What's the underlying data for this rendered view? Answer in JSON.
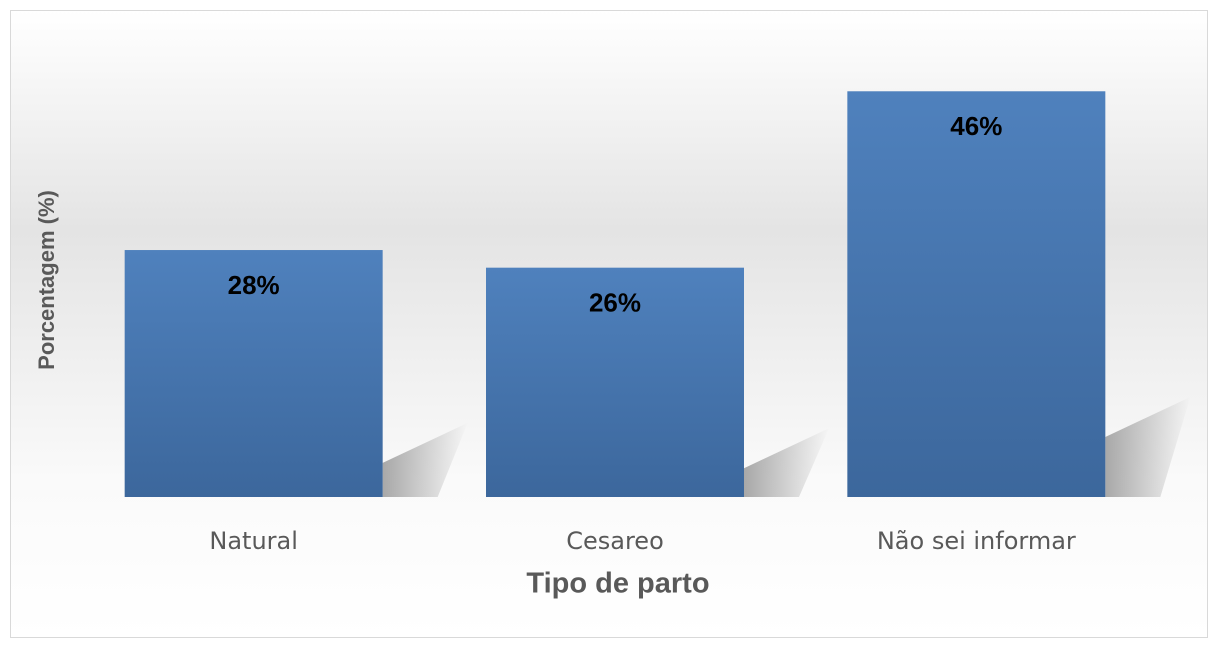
{
  "chart_data": {
    "type": "bar",
    "categories": [
      "Natural",
      "Cesareo",
      "Não sei informar"
    ],
    "values": [
      28,
      26,
      46
    ],
    "value_labels": [
      "28%",
      "26%",
      "46%"
    ],
    "color": "#4f81bd",
    "ylim": [
      0,
      50
    ],
    "x_label": "Tipo de parto",
    "y_label": "Porcentagem (%)"
  }
}
